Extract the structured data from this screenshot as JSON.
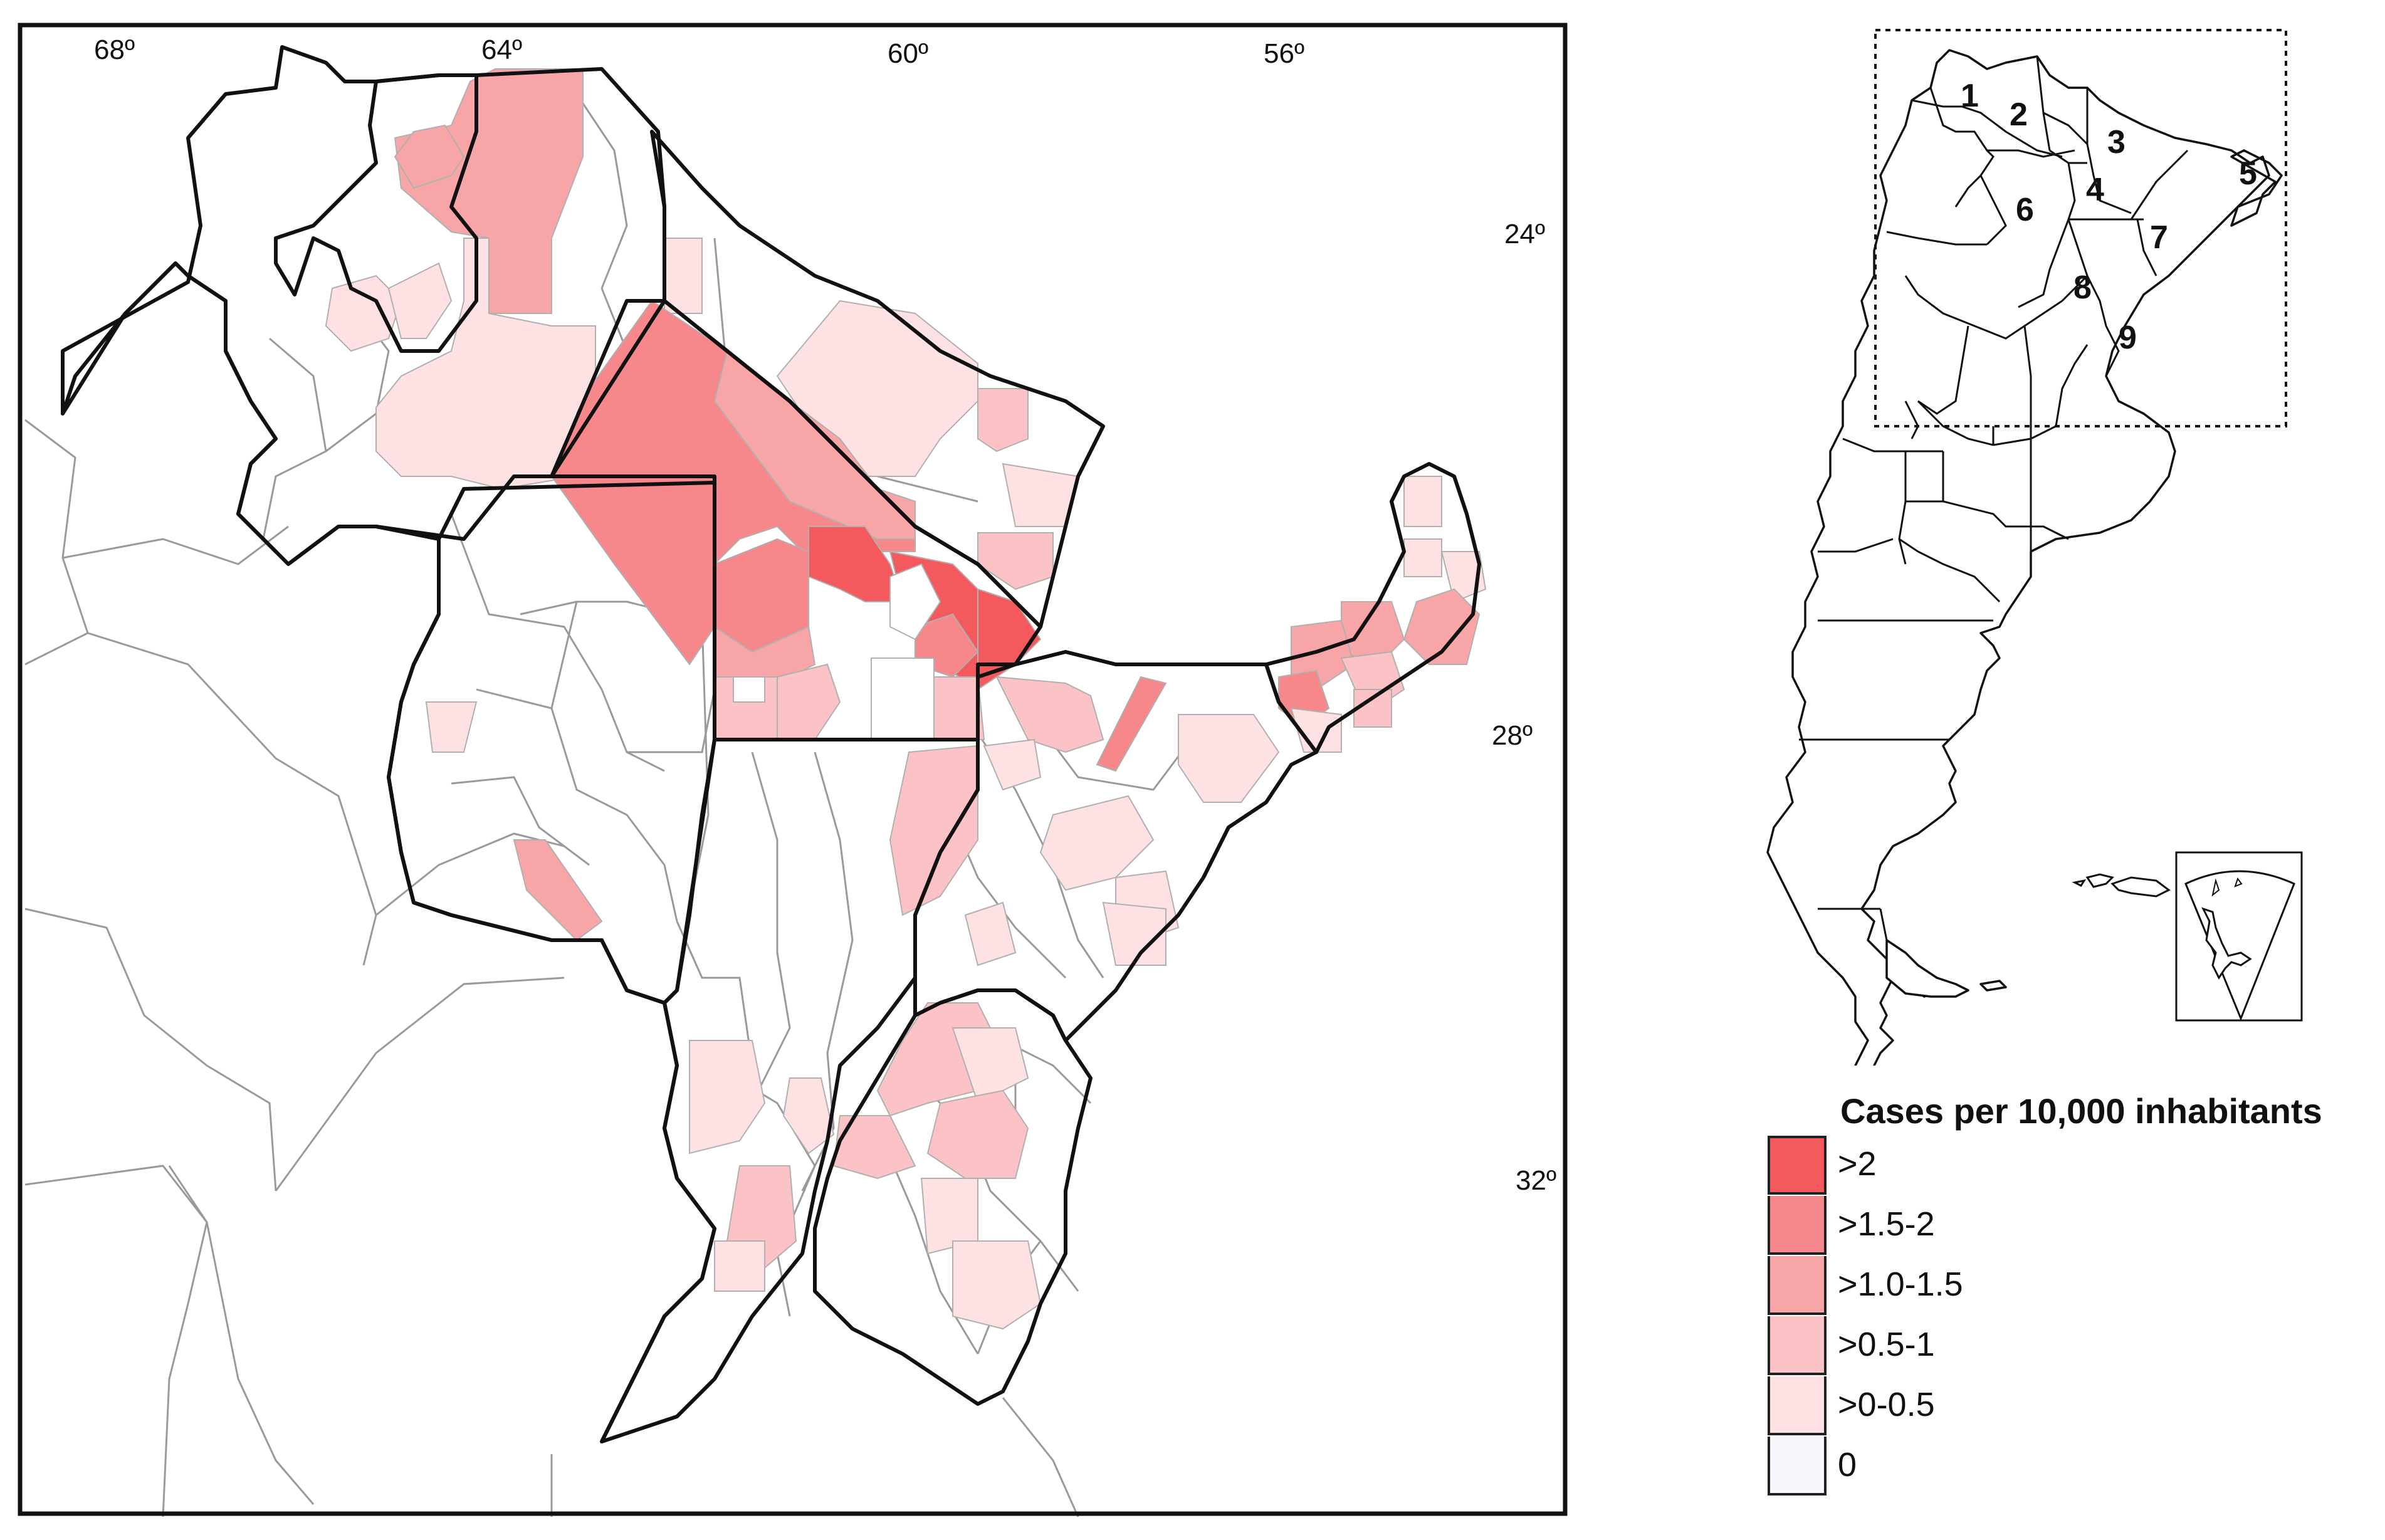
{
  "map": {
    "longitude_labels": [
      "68º",
      "64º",
      "60º",
      "56º"
    ],
    "latitude_labels": [
      "24º",
      "28º",
      "32º"
    ]
  },
  "inset": {
    "region_numbers": [
      "1",
      "2",
      "3",
      "4",
      "5",
      "6",
      "7",
      "8",
      "9"
    ]
  },
  "legend": {
    "title": "Cases per 10,000 inhabitants",
    "items": [
      {
        "label": ">2",
        "color": "#f4595d"
      },
      {
        "label": ">1.5-2",
        "color": "#f6878a"
      },
      {
        "label": ">1.0-1.5",
        "color": "#f8a5a8"
      },
      {
        "label": ">0.5-1",
        "color": "#fbc3c5"
      },
      {
        "label": ">0-0.5",
        "color": "#fde1e3"
      },
      {
        "label": "0",
        "color": "#f7f7fd"
      }
    ]
  },
  "colors": {
    "c5": "#f4595d",
    "c4": "#f6878a",
    "c3": "#f8a5a8",
    "c2": "#fbc3c5",
    "c1": "#fde1e3",
    "c0": "#ffffff",
    "province_border": "#111111",
    "department_border": "#9a9a9a"
  }
}
